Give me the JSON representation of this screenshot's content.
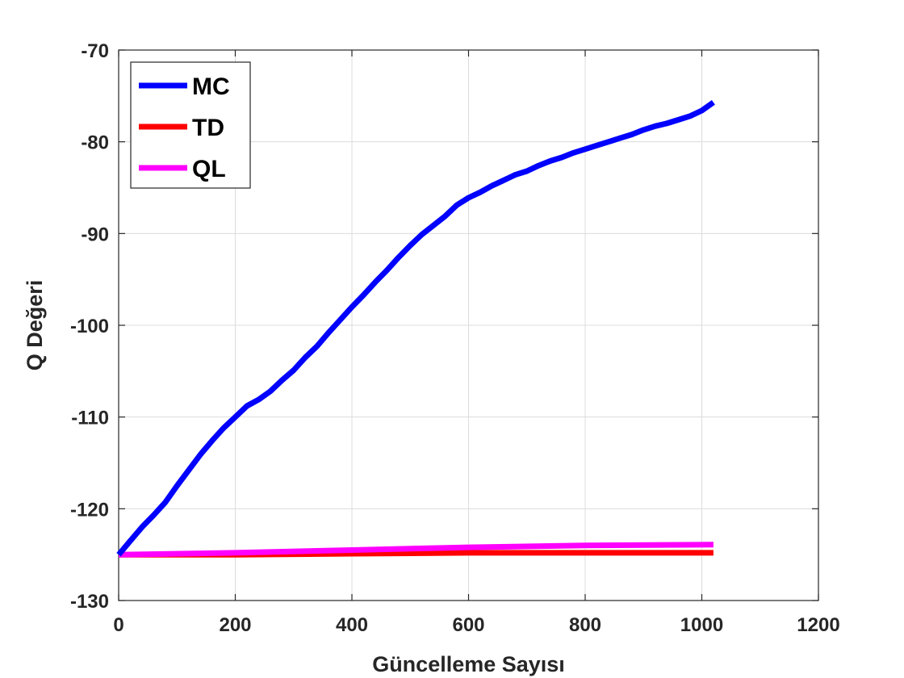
{
  "chart_data": {
    "type": "line",
    "xlabel": "Güncelleme Sayısı",
    "ylabel": "Q Değeri",
    "xlim": [
      0,
      1200
    ],
    "ylim": [
      -130,
      -70
    ],
    "xticks": [
      0,
      200,
      400,
      600,
      800,
      1000,
      1200
    ],
    "yticks": [
      -130,
      -120,
      -110,
      -100,
      -90,
      -80,
      -70
    ],
    "grid": true,
    "legend_position": "top-left",
    "series": [
      {
        "name": "MC",
        "color": "#0000ff",
        "x": [
          0,
          20,
          40,
          60,
          80,
          100,
          120,
          140,
          160,
          180,
          200,
          220,
          240,
          260,
          280,
          300,
          320,
          340,
          360,
          380,
          400,
          420,
          440,
          460,
          480,
          500,
          520,
          540,
          560,
          580,
          600,
          620,
          640,
          660,
          680,
          700,
          720,
          740,
          760,
          780,
          800,
          820,
          840,
          860,
          880,
          900,
          920,
          940,
          960,
          980,
          1000,
          1020
        ],
        "y": [
          -125,
          -123.5,
          -122,
          -120.7,
          -119.3,
          -117.5,
          -115.8,
          -114.1,
          -112.6,
          -111.2,
          -110,
          -108.8,
          -108.1,
          -107.2,
          -106,
          -104.9,
          -103.5,
          -102.3,
          -100.8,
          -99.4,
          -98,
          -96.7,
          -95.3,
          -94,
          -92.6,
          -91.3,
          -90.1,
          -89.1,
          -88.1,
          -86.9,
          -86.1,
          -85.5,
          -84.8,
          -84.2,
          -83.6,
          -83.2,
          -82.6,
          -82.1,
          -81.7,
          -81.2,
          -80.8,
          -80.4,
          -80,
          -79.6,
          -79.2,
          -78.7,
          -78.3,
          -78,
          -77.6,
          -77.2,
          -76.6,
          -75.7
        ]
      },
      {
        "name": "TD",
        "color": "#ff0000",
        "x": [
          0,
          200,
          400,
          600,
          800,
          1020
        ],
        "y": [
          -125,
          -125,
          -124.9,
          -124.8,
          -124.8,
          -124.8
        ]
      },
      {
        "name": "QL",
        "color": "#ff00ff",
        "x": [
          0,
          200,
          400,
          600,
          800,
          1020
        ],
        "y": [
          -125,
          -124.8,
          -124.5,
          -124.2,
          -124,
          -123.9
        ]
      }
    ]
  }
}
